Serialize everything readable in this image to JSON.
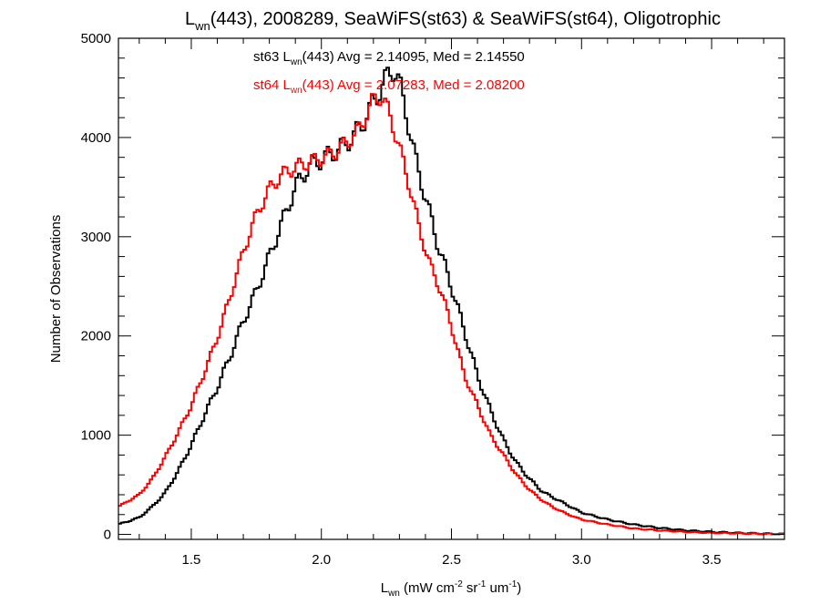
{
  "chart_data": {
    "type": "line",
    "step": true,
    "title": {
      "main": "L",
      "sub": "wn",
      "rest": "(443), 2008289, SeaWiFS(st63) & SeaWiFS(st64), Oligotrophic"
    },
    "xlabel": {
      "main": "L",
      "sub": "wn",
      "parts": [
        " (mW cm",
        "-2",
        " sr",
        "-1",
        " um",
        "-1",
        ")"
      ]
    },
    "ylabel": "Number of Observations",
    "xlim": [
      1.22,
      3.78
    ],
    "ylim": [
      -50,
      5000
    ],
    "xticks": [
      {
        "value": 1.5,
        "label": "1.5"
      },
      {
        "value": 2.0,
        "label": "2.0"
      },
      {
        "value": 2.5,
        "label": "2.5"
      },
      {
        "value": 3.0,
        "label": "3.0"
      },
      {
        "value": 3.5,
        "label": "3.5"
      }
    ],
    "yticks": [
      {
        "value": 0,
        "label": "0"
      },
      {
        "value": 1000,
        "label": "1000"
      },
      {
        "value": 2000,
        "label": "2000"
      },
      {
        "value": 3000,
        "label": "3000"
      },
      {
        "value": 4000,
        "label": "4000"
      },
      {
        "value": 5000,
        "label": "5000"
      }
    ],
    "annotations": [
      {
        "prefix": "st63 L",
        "sub": "wn",
        "suffix": "(443) Avg = 2.14095, Med = 2.14550",
        "color": "#000000"
      },
      {
        "prefix": "st64 L",
        "sub": "wn",
        "suffix": "(443) Avg = 2.07283, Med = 2.08200",
        "color": "#ff0000"
      }
    ],
    "series": [
      {
        "color": "#000000",
        "points": [
          [
            1.22,
            100
          ],
          [
            1.3,
            170
          ],
          [
            1.35,
            280
          ],
          [
            1.4,
            420
          ],
          [
            1.45,
            640
          ],
          [
            1.5,
            900
          ],
          [
            1.55,
            1200
          ],
          [
            1.6,
            1480
          ],
          [
            1.65,
            1800
          ],
          [
            1.7,
            2150
          ],
          [
            1.75,
            2450
          ],
          [
            1.8,
            2800
          ],
          [
            1.85,
            3150
          ],
          [
            1.9,
            3500
          ],
          [
            1.95,
            3700
          ],
          [
            2.0,
            3780
          ],
          [
            2.05,
            3850
          ],
          [
            2.1,
            3950
          ],
          [
            2.15,
            4100
          ],
          [
            2.2,
            4350
          ],
          [
            2.25,
            4600
          ],
          [
            2.28,
            4700
          ],
          [
            2.3,
            4550
          ],
          [
            2.33,
            4200
          ],
          [
            2.36,
            3800
          ],
          [
            2.4,
            3400
          ],
          [
            2.45,
            2900
          ],
          [
            2.5,
            2500
          ],
          [
            2.55,
            2050
          ],
          [
            2.6,
            1600
          ],
          [
            2.65,
            1250
          ],
          [
            2.7,
            950
          ],
          [
            2.75,
            720
          ],
          [
            2.8,
            560
          ],
          [
            2.85,
            430
          ],
          [
            2.9,
            360
          ],
          [
            2.95,
            290
          ],
          [
            3.0,
            220
          ],
          [
            3.1,
            150
          ],
          [
            3.2,
            100
          ],
          [
            3.3,
            65
          ],
          [
            3.4,
            40
          ],
          [
            3.5,
            25
          ],
          [
            3.6,
            15
          ],
          [
            3.7,
            8
          ],
          [
            3.78,
            4
          ]
        ]
      },
      {
        "color": "#ff0000",
        "points": [
          [
            1.22,
            280
          ],
          [
            1.3,
            400
          ],
          [
            1.35,
            560
          ],
          [
            1.4,
            780
          ],
          [
            1.45,
            1030
          ],
          [
            1.5,
            1300
          ],
          [
            1.55,
            1630
          ],
          [
            1.6,
            1980
          ],
          [
            1.65,
            2400
          ],
          [
            1.7,
            2850
          ],
          [
            1.75,
            3220
          ],
          [
            1.8,
            3480
          ],
          [
            1.85,
            3630
          ],
          [
            1.9,
            3700
          ],
          [
            1.95,
            3750
          ],
          [
            2.0,
            3790
          ],
          [
            2.05,
            3850
          ],
          [
            2.1,
            3950
          ],
          [
            2.15,
            4100
          ],
          [
            2.2,
            4380
          ],
          [
            2.23,
            4420
          ],
          [
            2.26,
            4250
          ],
          [
            2.3,
            3900
          ],
          [
            2.34,
            3500
          ],
          [
            2.38,
            3050
          ],
          [
            2.42,
            2700
          ],
          [
            2.46,
            2450
          ],
          [
            2.5,
            2100
          ],
          [
            2.55,
            1600
          ],
          [
            2.6,
            1300
          ],
          [
            2.65,
            1000
          ],
          [
            2.7,
            800
          ],
          [
            2.75,
            600
          ],
          [
            2.8,
            450
          ],
          [
            2.85,
            340
          ],
          [
            2.9,
            260
          ],
          [
            2.95,
            200
          ],
          [
            3.0,
            150
          ],
          [
            3.1,
            100
          ],
          [
            3.2,
            60
          ],
          [
            3.3,
            40
          ],
          [
            3.4,
            25
          ],
          [
            3.5,
            15
          ],
          [
            3.6,
            10
          ],
          [
            3.7,
            5
          ],
          [
            3.78,
            2
          ]
        ]
      }
    ]
  }
}
